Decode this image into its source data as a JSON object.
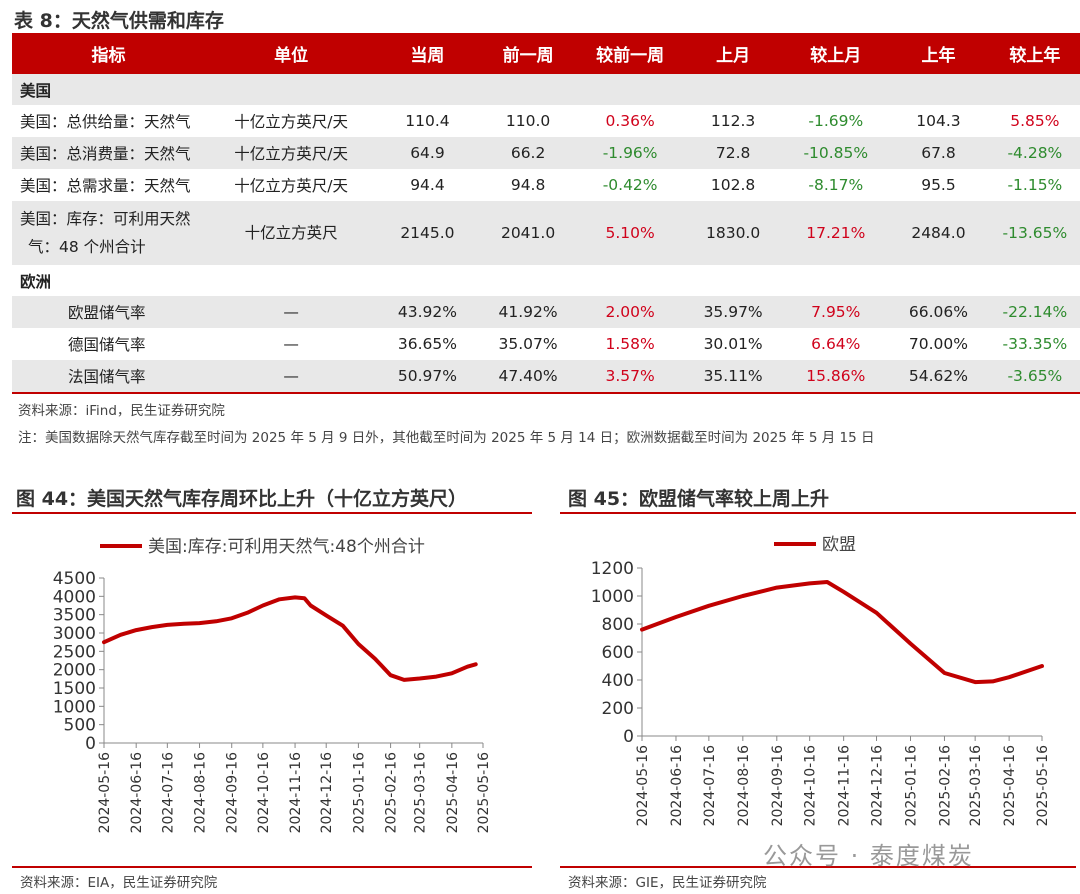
{
  "table": {
    "title": "表 8：天然气供需和库存",
    "headers": [
      "指标",
      "单位",
      "当周",
      "前一周",
      "较前一周",
      "上月",
      "较上月",
      "上年",
      "较上年"
    ],
    "section_us": "美国",
    "section_eu": "欧洲",
    "rows_us": [
      {
        "ind": "美国：总供给量：天然气",
        "unit": "十亿立方英尺/天",
        "cur": "110.4",
        "prev": "110.0",
        "wow": "0.36%",
        "lm": "112.3",
        "mom": "-1.69%",
        "ly": "104.3",
        "yoy": "5.85%"
      },
      {
        "ind": "美国：总消费量：天然气",
        "unit": "十亿立方英尺/天",
        "cur": "64.9",
        "prev": "66.2",
        "wow": "-1.96%",
        "lm": "72.8",
        "mom": "-10.85%",
        "ly": "67.8",
        "yoy": "-4.28%"
      },
      {
        "ind": "美国：总需求量：天然气",
        "unit": "十亿立方英尺/天",
        "cur": "94.4",
        "prev": "94.8",
        "wow": "-0.42%",
        "lm": "102.8",
        "mom": "-8.17%",
        "ly": "95.5",
        "yoy": "-1.15%"
      },
      {
        "ind1": "美国：库存：可利用天然",
        "ind2": "气：48 个州合计",
        "unit": "十亿立方英尺",
        "cur": "2145.0",
        "prev": "2041.0",
        "wow": "5.10%",
        "lm": "1830.0",
        "mom": "17.21%",
        "ly": "2484.0",
        "yoy": "-13.65%"
      }
    ],
    "rows_eu": [
      {
        "ind": "欧盟储气率",
        "unit": "—",
        "cur": "43.92%",
        "prev": "41.92%",
        "wow": "2.00%",
        "lm": "35.97%",
        "mom": "7.95%",
        "ly": "66.06%",
        "yoy": "-22.14%"
      },
      {
        "ind": "德国储气率",
        "unit": "—",
        "cur": "36.65%",
        "prev": "35.07%",
        "wow": "1.58%",
        "lm": "30.01%",
        "mom": "6.64%",
        "ly": "70.00%",
        "yoy": "-33.35%"
      },
      {
        "ind": "法国储气率",
        "unit": "—",
        "cur": "50.97%",
        "prev": "47.40%",
        "wow": "3.57%",
        "lm": "35.11%",
        "mom": "15.86%",
        "ly": "54.62%",
        "yoy": "-3.65%"
      }
    ],
    "source": "资料来源：iFind，民生证券研究院",
    "note": "注：美国数据除天然气库存截至时间为 2025 年 5 月 9 日外，其他截至时间为 2025 年 5 月 14 日；欧洲数据截至时间为 2025 年 5 月 15 日"
  },
  "fig44": {
    "title": "图 44：美国天然气库存周环比上升（十亿立方英尺）",
    "source": "资料来源：EIA，民生证券研究院"
  },
  "fig45": {
    "title": "图 45：欧盟储气率较上周上升",
    "source": "资料来源：GIE，民生证券研究院"
  },
  "watermark": "公众号 · 泰度煤炭",
  "colors": {
    "accent": "#c00000",
    "positive": "#d0021b",
    "negative": "#2e8b2e"
  },
  "chart_data": [
    {
      "type": "line",
      "legend": [
        "美国:库存:可利用天然气:48个州合计"
      ],
      "legend_position": "top",
      "ylim": [
        0,
        4500
      ],
      "yticks": [
        0,
        500,
        1000,
        1500,
        2000,
        2500,
        3000,
        3500,
        4000,
        4500
      ],
      "xticks": [
        "2024-05-16",
        "2024-06-16",
        "2024-07-16",
        "2024-08-16",
        "2024-09-16",
        "2024-10-16",
        "2024-11-16",
        "2024-12-16",
        "2025-01-16",
        "2025-02-16",
        "2025-03-16",
        "2025-04-16",
        "2025-05-16"
      ],
      "series": [
        {
          "name": "美国:库存:可利用天然气:48个州合计",
          "color": "#c00000",
          "x": [
            "2024-05-16",
            "2024-06-01",
            "2024-06-16",
            "2024-07-01",
            "2024-07-16",
            "2024-08-01",
            "2024-08-16",
            "2024-09-01",
            "2024-09-16",
            "2024-10-01",
            "2024-10-16",
            "2024-11-01",
            "2024-11-16",
            "2024-11-25",
            "2024-12-01",
            "2024-12-16",
            "2025-01-01",
            "2025-01-16",
            "2025-02-01",
            "2025-02-16",
            "2025-03-01",
            "2025-03-16",
            "2025-04-01",
            "2025-04-16",
            "2025-05-01",
            "2025-05-09"
          ],
          "y": [
            2750,
            2950,
            3080,
            3160,
            3220,
            3250,
            3270,
            3320,
            3400,
            3550,
            3750,
            3920,
            3970,
            3950,
            3750,
            3480,
            3200,
            2700,
            2300,
            1850,
            1720,
            1760,
            1810,
            1900,
            2080,
            2145
          ]
        }
      ]
    },
    {
      "type": "line",
      "legend": [
        "欧盟"
      ],
      "legend_position": "top",
      "ylim": [
        0,
        1200
      ],
      "yticks": [
        0,
        200,
        400,
        600,
        800,
        1000,
        1200
      ],
      "xticks": [
        "2024-05-16",
        "2024-06-16",
        "2024-07-16",
        "2024-08-16",
        "2024-09-16",
        "2024-10-16",
        "2024-11-16",
        "2024-12-16",
        "2025-01-16",
        "2025-02-16",
        "2025-03-16",
        "2025-04-16",
        "2025-05-16"
      ],
      "series": [
        {
          "name": "欧盟",
          "color": "#c00000",
          "x": [
            "2024-05-16",
            "2024-06-16",
            "2024-07-16",
            "2024-08-16",
            "2024-09-16",
            "2024-10-16",
            "2024-11-01",
            "2024-11-16",
            "2024-12-16",
            "2025-01-16",
            "2025-02-16",
            "2025-03-16",
            "2025-04-01",
            "2025-04-16",
            "2025-05-16"
          ],
          "y": [
            760,
            850,
            930,
            1000,
            1060,
            1090,
            1100,
            1030,
            880,
            660,
            450,
            385,
            390,
            420,
            500
          ]
        }
      ]
    }
  ]
}
